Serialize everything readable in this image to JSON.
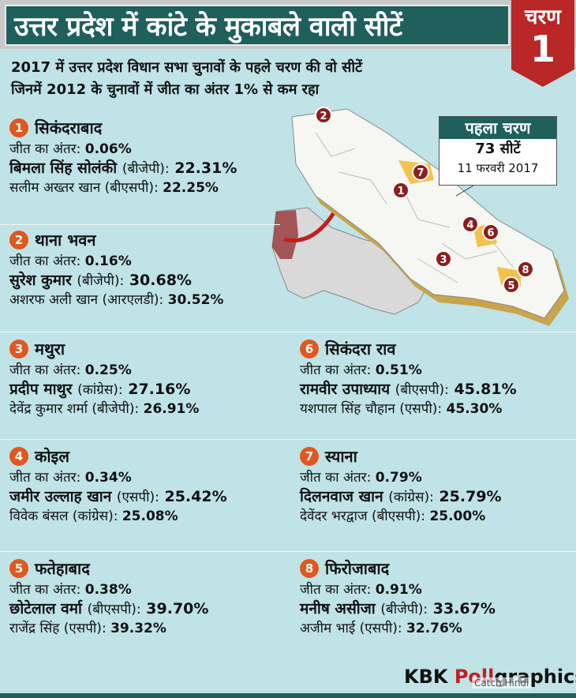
{
  "title": "उत्तर प्रदेश में कांटे के मुकाबले वाली सीटें",
  "badge": {
    "label": "चरण",
    "number": "1"
  },
  "intro": {
    "line1": "2017 में उत्तर प्रदेश विधान सभा चुनावों के पहले चरण की वो सीटें",
    "line2": "जिनमें 2012 के चुनावों में जीत का अंतर 1% से कम रहा"
  },
  "phase": {
    "title": "पहला चरण",
    "seats": "73 सीटें",
    "date": "11 फरवरी 2017"
  },
  "margin_label": "जीत का अंतर:",
  "seats": [
    {
      "num": "1",
      "name": "सिकंदराबाद",
      "margin": "0.06%",
      "winner": "बिमला सिंह सोलंकी",
      "winner_party": "(बीजेपी):",
      "winner_pct": "22.31%",
      "runner": "सलीम अख्तर खान (बीएसपी):",
      "runner_pct": "22.25%"
    },
    {
      "num": "2",
      "name": "थाना भवन",
      "margin": "0.16%",
      "winner": "सुरेश कुमार",
      "winner_party": " (बीजेपी):",
      "winner_pct": "30.68%",
      "runner": "अशरफ अली खान (आरएलडी):",
      "runner_pct": "30.52%"
    },
    {
      "num": "3",
      "name": "मथुरा",
      "margin": "0.25%",
      "winner": "प्रदीप माथुर",
      "winner_party": "(कांग्रेस):",
      "winner_pct": "27.16%",
      "runner": "देवेंद्र कुमार शर्मा (बीजेपी):",
      "runner_pct": "26.91%"
    },
    {
      "num": "4",
      "name": "कोइल",
      "margin": "0.34%",
      "winner": "जमीर उल्लाह खान",
      "winner_party": "(एसपी):",
      "winner_pct": "25.42%",
      "runner": "विवेक बंसल (कांग्रेस):",
      "runner_pct": "25.08%"
    },
    {
      "num": "5",
      "name": "फतेहाबाद",
      "margin": "0.38%",
      "winner": "छोटेलाल वर्मा",
      "winner_party": "(बीएसपी):",
      "winner_pct": "39.70%",
      "runner": "राजेंद्र सिंह (एसपी):",
      "runner_pct": "39.32%"
    },
    {
      "num": "6",
      "name": "सिकंदरा राव",
      "margin": "0.51%",
      "winner": "रामवीर उपाध्याय",
      "winner_party": "(बीएसपी):",
      "winner_pct": "45.81%",
      "runner": "यशपाल सिंह चौहान (एसपी):",
      "runner_pct": "45.30%"
    },
    {
      "num": "7",
      "name": "स्याना",
      "margin": "0.79%",
      "winner": "दिलनवाज खान",
      "winner_party": "(कांग्रेस):",
      "winner_pct": "25.79%",
      "runner": "देवेंदर भरद्वाज (बीएसपी):",
      "runner_pct": "25.00%"
    },
    {
      "num": "8",
      "name": "फिरोजाबाद",
      "margin": "0.91%",
      "winner": "मनीष असीजा",
      "winner_party": "(बीजेपी):",
      "winner_pct": "33.67%",
      "runner": "अजीम भाई (एसपी):",
      "runner_pct": "32.76%"
    }
  ],
  "brand": {
    "part1": "KBK ",
    "part2": "Poll",
    "part3": "graphics"
  },
  "watermark": "Catch Hindi",
  "colors": {
    "background": "#bfe3e6",
    "title_bar": "#1f5f5c",
    "badge": "#b92726",
    "number_circle": "#e2571e",
    "map_marker": "#8b1e1e",
    "highlight": "#f3c24b"
  }
}
